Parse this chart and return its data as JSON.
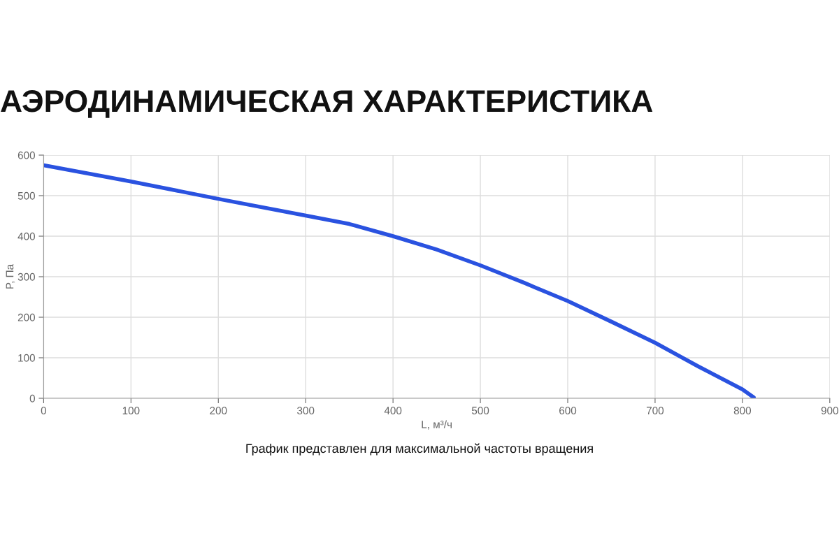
{
  "chart_data": {
    "type": "line",
    "title": "АЭРОДИНАМИЧЕСКАЯ ХАРАКТЕРИСТИКА",
    "xlabel": "L, м³/ч",
    "ylabel": "P, Па",
    "annotations": [
      "График представлен для максимальной частоты вращения"
    ],
    "x": [
      0,
      100,
      200,
      300,
      350,
      400,
      450,
      500,
      550,
      600,
      650,
      700,
      750,
      800,
      813
    ],
    "series": [
      {
        "color": "#2a52e0",
        "values": [
          575,
          535,
          492,
          451,
          430,
          400,
          367,
          328,
          285,
          240,
          189,
          137,
          78,
          22,
          2
        ]
      }
    ],
    "xlim": [
      0,
      900
    ],
    "xticks": [
      0,
      100,
      200,
      300,
      400,
      500,
      600,
      700,
      800,
      900
    ],
    "ylim": [
      0,
      600
    ],
    "yticks": [
      0,
      100,
      200,
      300,
      400,
      500,
      600
    ],
    "grid": true,
    "marker": "none",
    "line_style": "solid"
  }
}
